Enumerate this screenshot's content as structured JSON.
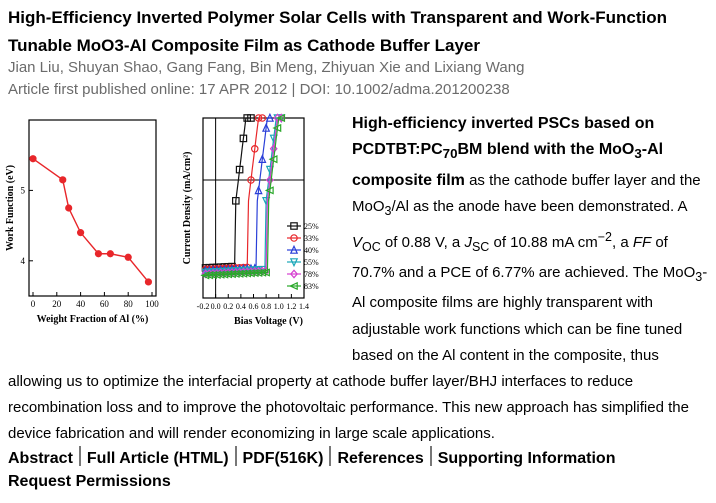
{
  "article": {
    "title": "High-Efficiency Inverted Polymer Solar Cells with Transparent and Work-Function Tunable MoO3-Al Composite Film as Cathode Buffer Layer",
    "authors": "Jian Liu, Shuyan Shao, Gang Fang, Bin Meng, Zhiyuan Xie and Lixiang Wang",
    "pubinfo": "Article first published online: 17 APR 2012 | DOI: 10.1002/adma.201200238"
  },
  "abstract": {
    "bold_part1": "High-efficiency inverted PSCs based on PCDTBT:PC",
    "bold_sub": "70",
    "bold_part2": "BM blend with the MoO",
    "bold_sub2": "3",
    "bold_part3": "-Al composite film",
    "text1": " as the cathode buffer layer and the MoO",
    "sub3": "3",
    "text2": "/Al as the anode have been demonstrated. A ",
    "voc_label": "V",
    "voc_sub": "OC",
    "text3": " of 0.88 V, a ",
    "jsc_label": "J",
    "jsc_sub": "SC",
    "text4": " of 10.88 mA cm",
    "jsc_sup": "−2",
    "text5": ", a ",
    "ff_label": "FF",
    "text6": " of 70.7% and a PCE of 6.77% are achieved. The MoO",
    "sub4": "3",
    "text7": "-Al composite films are highly transparent with adjustable work functions which can be fine tuned based on the Al content in the composite, thus allowing us to optimize the interfacial property at cathode buffer layer/BHJ interfaces to reduce recombination loss and to improve the photovoltaic performance. This new approach has simplified the device fabrication and will render economizing in large scale applications."
  },
  "links": {
    "abstract": "Abstract",
    "full_article": "Full Article (HTML)",
    "pdf": "PDF(516K)",
    "references": "References",
    "supporting": "Supporting Information",
    "permissions": "Request Permissions"
  },
  "chart_data": [
    {
      "type": "line",
      "xlabel": "Weight Fraction of Al (%)",
      "ylabel": "Work Function (eV)",
      "xlim": [
        0,
        100
      ],
      "ylim": [
        3.5,
        6.0
      ],
      "xticks": [
        "0",
        "20",
        "40",
        "60",
        "80",
        "100"
      ],
      "yticks": [
        "4",
        "5"
      ],
      "color": "#e8262a",
      "x": [
        0,
        25,
        30,
        40,
        55,
        65,
        80,
        97
      ],
      "y": [
        5.45,
        5.15,
        4.75,
        4.4,
        4.1,
        4.1,
        4.05,
        3.7
      ]
    },
    {
      "type": "line",
      "xlabel": "Bias Voltage (V)",
      "ylabel": "Current Density (mA/cm²)",
      "xlim": [
        -0.2,
        1.4
      ],
      "xticks": [
        "-0.2",
        "0.0",
        "0.2",
        "0.4",
        "0.6",
        "0.8",
        "1.0",
        "1.2",
        "1.4"
      ],
      "legend_position": "right",
      "series": [
        {
          "name": "25%",
          "color": "#111111",
          "marker": "square",
          "voc": 0.36
        },
        {
          "name": "33%",
          "color": "#e8262a",
          "marker": "circle",
          "voc": 0.56
        },
        {
          "name": "40%",
          "color": "#2a3fd8",
          "marker": "triangle-up",
          "voc": 0.7
        },
        {
          "name": "55%",
          "color": "#1aa6b8",
          "marker": "triangle-down",
          "voc": 0.84
        },
        {
          "name": "78%",
          "color": "#d63fd0",
          "marker": "diamond",
          "voc": 0.86
        },
        {
          "name": "83%",
          "color": "#2aa82a",
          "marker": "triangle-left",
          "voc": 0.88
        }
      ]
    }
  ]
}
